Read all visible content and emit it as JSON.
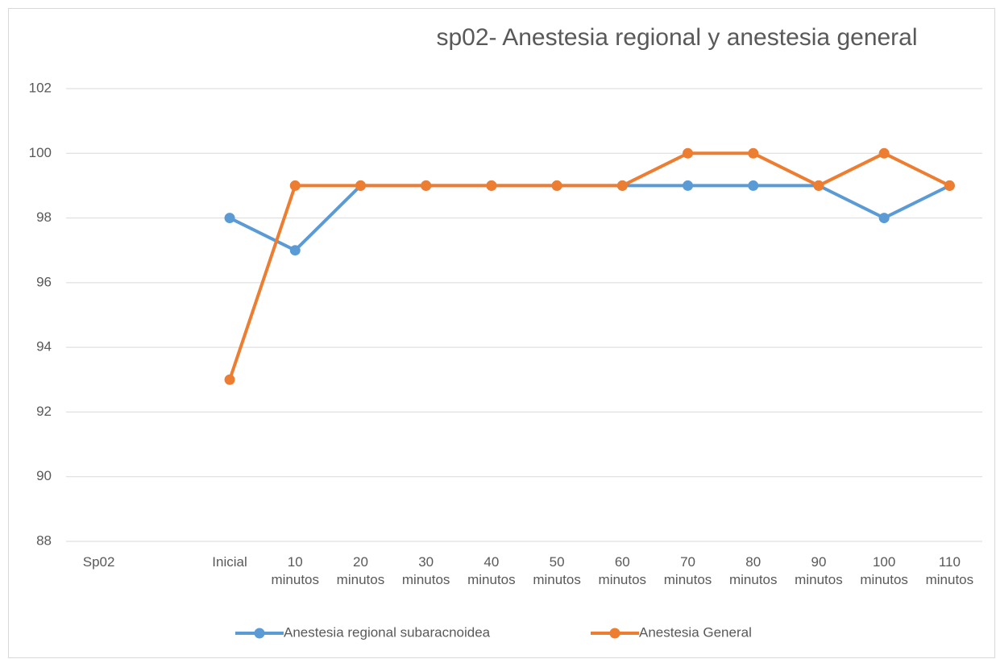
{
  "chart_data": {
    "type": "line",
    "title": "sp02- Anestesia regional  y anestesia general",
    "categories": [
      "Sp02",
      null,
      "Inicial",
      "10 minutos",
      "20 minutos",
      "30 minutos",
      "40 minutos",
      "50 minutos",
      "60 minutos",
      "70 minutos",
      "80 minutos",
      "90 minutos",
      "100 minutos",
      "110 minutos"
    ],
    "series": [
      {
        "name": "Anestesia regional subaracnoidea",
        "color": "#5b9bd5",
        "values": [
          null,
          null,
          98,
          97,
          99,
          99,
          99,
          99,
          99,
          99,
          99,
          99,
          98,
          99
        ]
      },
      {
        "name": "Anestesia General",
        "color": "#ed7d31",
        "values": [
          null,
          null,
          93,
          99,
          99,
          99,
          99,
          99,
          99,
          100,
          100,
          99,
          100,
          99
        ]
      }
    ],
    "ylim": [
      88,
      102
    ],
    "yticks": [
      88,
      90,
      92,
      94,
      96,
      98,
      100,
      102
    ],
    "grid": true,
    "legend": "bottom"
  }
}
